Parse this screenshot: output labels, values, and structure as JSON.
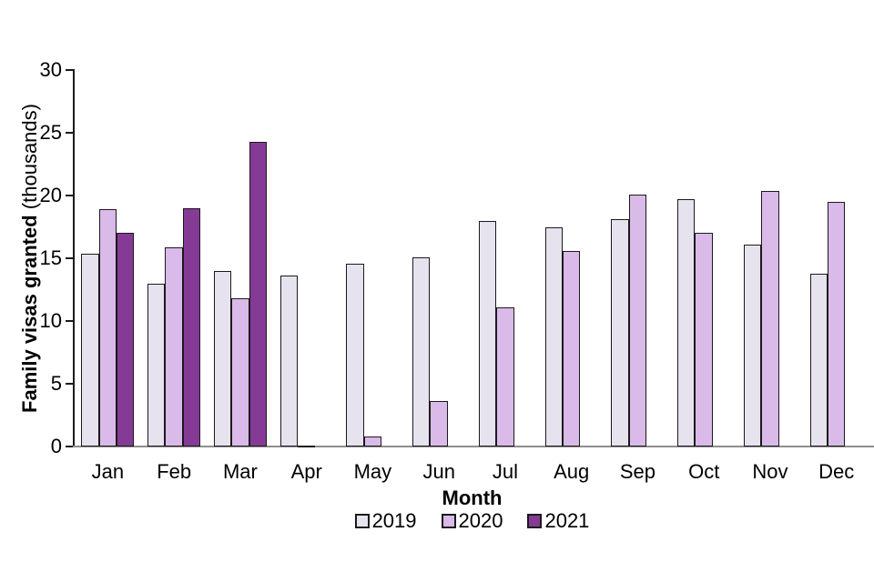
{
  "chart_data": {
    "type": "bar",
    "title": "",
    "xlabel": "Month",
    "ylabel_bold": "Family visas granted",
    "ylabel_normal": "(thousands)",
    "ylim": [
      0,
      30
    ],
    "yticks": [
      0,
      5,
      10,
      15,
      20,
      25,
      30
    ],
    "grid": false,
    "legend_position": "bottom",
    "categories": [
      "Jan",
      "Feb",
      "Mar",
      "Apr",
      "May",
      "Jun",
      "Jul",
      "Aug",
      "Sep",
      "Oct",
      "Nov",
      "Dec"
    ],
    "series": [
      {
        "name": "2019",
        "color": "#e6e3ee",
        "values": [
          15.4,
          13.0,
          14.0,
          13.6,
          14.6,
          15.1,
          18.0,
          17.5,
          18.1,
          19.7,
          16.1,
          13.8
        ]
      },
      {
        "name": "2020",
        "color": "#d9bae8",
        "values": [
          18.9,
          15.9,
          11.8,
          0.1,
          0.8,
          3.6,
          11.1,
          15.6,
          20.1,
          17.0,
          20.4,
          19.5
        ]
      },
      {
        "name": "2021",
        "color": "#853b96",
        "values": [
          17.0,
          19.0,
          24.3,
          null,
          null,
          null,
          null,
          null,
          null,
          null,
          null,
          null
        ]
      }
    ],
    "colors": {
      "axis": "#1a1a1a",
      "baseline": "#8e8e8e",
      "bar_border": "#1a1a1a"
    }
  }
}
